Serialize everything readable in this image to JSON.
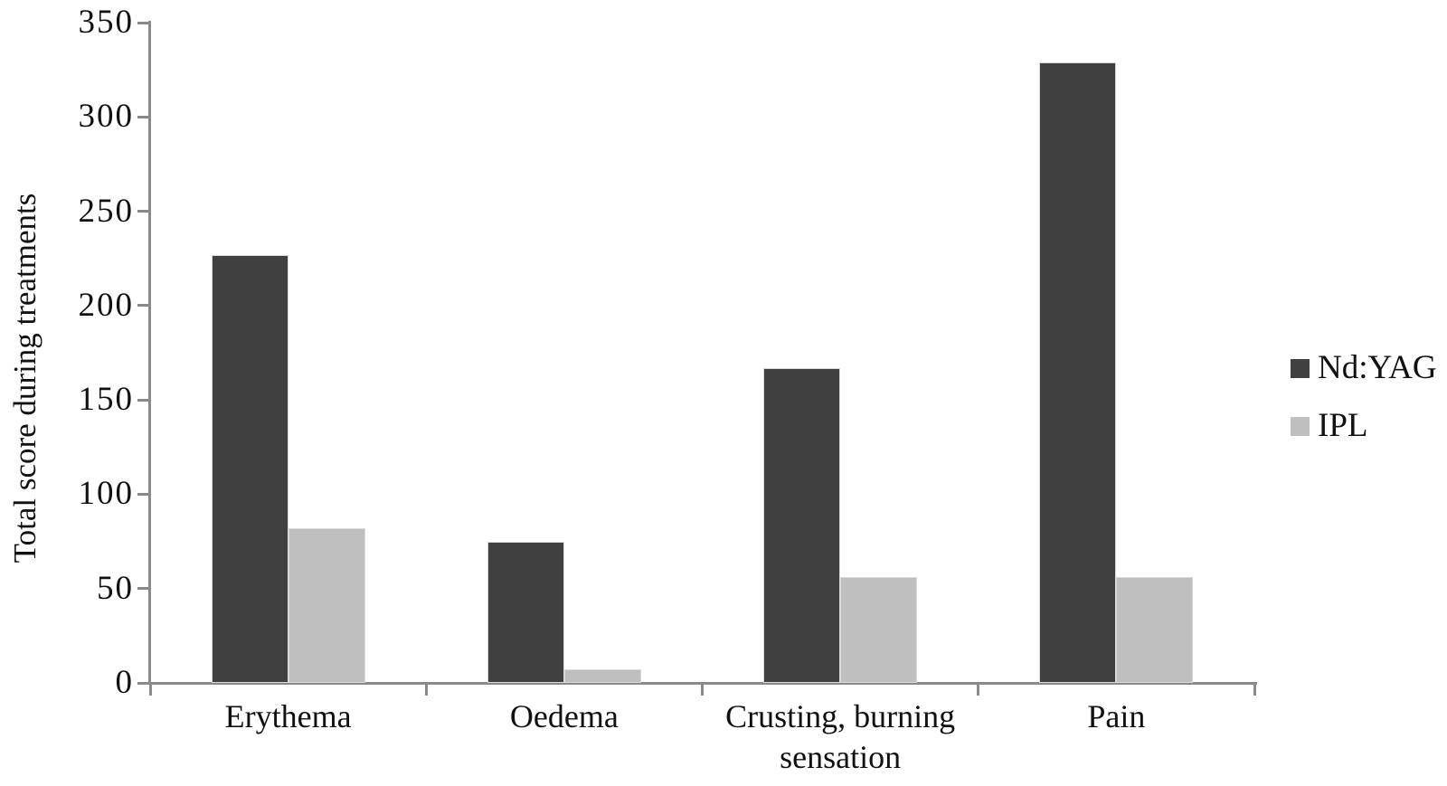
{
  "chart_data": {
    "type": "bar",
    "title": "",
    "xlabel": "",
    "ylabel": "Total score during treatments",
    "categories": [
      "Erythema",
      "Oedema",
      "Crusting, burning sensation",
      "Pain"
    ],
    "series": [
      {
        "name": "Nd:YAG",
        "color": "#404040",
        "values": [
          227,
          75,
          167,
          329
        ]
      },
      {
        "name": "IPL",
        "color": "#bfbfbf",
        "values": [
          82,
          7,
          56,
          56
        ]
      }
    ],
    "ylim": [
      0,
      350
    ],
    "ytick_step": 50,
    "yticks": [
      0,
      50,
      100,
      150,
      200,
      250,
      300,
      350
    ],
    "grid": false,
    "legend_position": "right",
    "axis_color": "#8a8a8a",
    "text_color": "#111111",
    "background_color": "#ffffff"
  }
}
